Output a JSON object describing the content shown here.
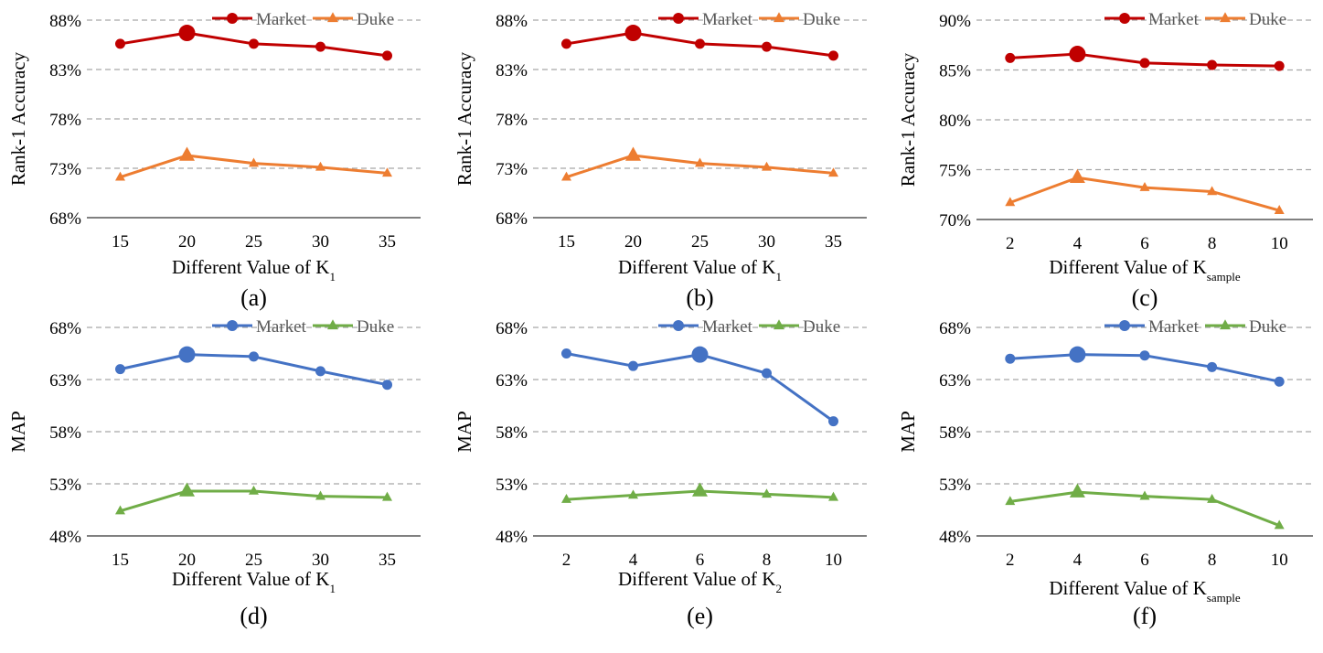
{
  "colors": {
    "market_red": "#c00000",
    "duke_orange": "#ed7d31",
    "market_blue": "#4472c4",
    "duke_green": "#70ad47",
    "grid": "#a6a6a6"
  },
  "chart_data": [
    {
      "type": "line",
      "panel_label": "(a)",
      "categories": [
        "15",
        "20",
        "25",
        "30",
        "35"
      ],
      "series": [
        {
          "name": "Market",
          "values": [
            85.6,
            86.7,
            85.6,
            85.3,
            84.4
          ],
          "marker": "circle",
          "color": "#c00000",
          "highlight_index": 1
        },
        {
          "name": "Duke",
          "values": [
            72.1,
            74.3,
            73.5,
            73.1,
            72.5
          ],
          "marker": "triangle",
          "color": "#ed7d31",
          "highlight_index": 1
        }
      ],
      "ylabel": "Rank-1 Accuracy",
      "xlabel": {
        "text": "Different Value of K",
        "sub": "1"
      },
      "ylim": [
        68,
        88
      ],
      "yticks": [
        68,
        73,
        78,
        83,
        88
      ],
      "ytick_labels": [
        "68%",
        "73%",
        "78%",
        "83%",
        "88%"
      ],
      "grid": true,
      "legend": "top-right"
    },
    {
      "type": "line",
      "panel_label": "(b)",
      "categories": [
        "15",
        "20",
        "25",
        "30",
        "35"
      ],
      "series": [
        {
          "name": "Market",
          "values": [
            85.6,
            86.7,
            85.6,
            85.3,
            84.4
          ],
          "marker": "circle",
          "color": "#c00000",
          "highlight_index": 1
        },
        {
          "name": "Duke",
          "values": [
            72.1,
            74.3,
            73.5,
            73.1,
            72.5
          ],
          "marker": "triangle",
          "color": "#ed7d31",
          "highlight_index": 1
        }
      ],
      "ylabel": "Rank-1 Accuracy",
      "xlabel": {
        "text": "Different Value of K",
        "sub": "1"
      },
      "ylim": [
        68,
        88
      ],
      "yticks": [
        68,
        73,
        78,
        83,
        88
      ],
      "ytick_labels": [
        "68%",
        "73%",
        "78%",
        "83%",
        "88%"
      ],
      "grid": true,
      "legend": "top-right"
    },
    {
      "type": "line",
      "panel_label": "(c)",
      "categories": [
        "2",
        "4",
        "6",
        "8",
        "10"
      ],
      "series": [
        {
          "name": "Market",
          "values": [
            86.2,
            86.6,
            85.7,
            85.5,
            85.4
          ],
          "marker": "circle",
          "color": "#c00000",
          "highlight_index": 1
        },
        {
          "name": "Duke",
          "values": [
            71.7,
            74.2,
            73.2,
            72.8,
            70.9
          ],
          "marker": "triangle",
          "color": "#ed7d31",
          "highlight_index": 1
        }
      ],
      "ylabel": "Rank-1 Accuracy",
      "xlabel": {
        "text": "Different Value of K",
        "sub": "sample"
      },
      "ylim": [
        70,
        90
      ],
      "yticks": [
        70,
        75,
        80,
        85,
        90
      ],
      "ytick_labels": [
        "70%",
        "75%",
        "80%",
        "85%",
        "90%"
      ],
      "grid": true,
      "legend": "top-right"
    },
    {
      "type": "line",
      "panel_label": "(d)",
      "categories": [
        "15",
        "20",
        "25",
        "30",
        "35"
      ],
      "series": [
        {
          "name": "Market",
          "values": [
            64.0,
            65.4,
            65.2,
            63.8,
            62.5
          ],
          "marker": "circle",
          "color": "#4472c4",
          "highlight_index": 1
        },
        {
          "name": "Duke",
          "values": [
            50.4,
            52.3,
            52.3,
            51.8,
            51.7
          ],
          "marker": "triangle",
          "color": "#70ad47",
          "highlight_index": 1
        }
      ],
      "ylabel": "MAP",
      "xlabel": {
        "text": "Different Value of K",
        "sub": "1"
      },
      "ylim": [
        48,
        68
      ],
      "yticks": [
        48,
        53,
        58,
        63,
        68
      ],
      "ytick_labels": [
        "48%",
        "53%",
        "58%",
        "63%",
        "68%"
      ],
      "grid": true,
      "legend": "top-right"
    },
    {
      "type": "line",
      "panel_label": "(e)",
      "categories": [
        "2",
        "4",
        "6",
        "8",
        "10"
      ],
      "series": [
        {
          "name": "Market",
          "values": [
            65.5,
            64.3,
            65.4,
            63.6,
            59.0
          ],
          "marker": "circle",
          "color": "#4472c4",
          "highlight_index": 2
        },
        {
          "name": "Duke",
          "values": [
            51.5,
            51.9,
            52.3,
            52.0,
            51.7
          ],
          "marker": "triangle",
          "color": "#70ad47",
          "highlight_index": 2
        }
      ],
      "ylabel": "MAP",
      "xlabel": {
        "text": "Different Value of K",
        "sub": "2"
      },
      "ylim": [
        48,
        68
      ],
      "yticks": [
        48,
        53,
        58,
        63,
        68
      ],
      "ytick_labels": [
        "48%",
        "53%",
        "58%",
        "63%",
        "68%"
      ],
      "grid": true,
      "legend": "top-right"
    },
    {
      "type": "line",
      "panel_label": "(f)",
      "categories": [
        "2",
        "4",
        "6",
        "8",
        "10"
      ],
      "series": [
        {
          "name": "Market",
          "values": [
            65.0,
            65.4,
            65.3,
            64.2,
            62.8
          ],
          "marker": "circle",
          "color": "#4472c4",
          "highlight_index": 1
        },
        {
          "name": "Duke",
          "values": [
            51.3,
            52.2,
            51.8,
            51.5,
            49.0
          ],
          "marker": "triangle",
          "color": "#70ad47",
          "highlight_index": 1
        }
      ],
      "ylabel": "MAP",
      "xlabel": {
        "text": "Different Value of K",
        "sub": "sample"
      },
      "ylim": [
        48,
        68
      ],
      "yticks": [
        48,
        53,
        58,
        63,
        68
      ],
      "ytick_labels": [
        "48%",
        "53%",
        "58%",
        "63%",
        "68%"
      ],
      "grid": true,
      "legend": "top-right"
    }
  ]
}
